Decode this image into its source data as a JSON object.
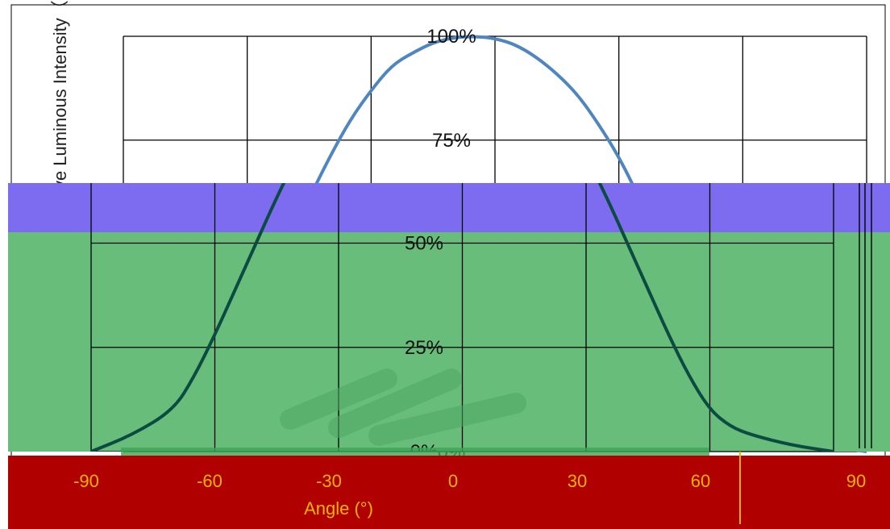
{
  "chart_data": {
    "type": "line",
    "title": "",
    "xlabel": "Angle (°)",
    "ylabel": "Relative Luminous Intensity（%）",
    "x_ticks": [
      -90,
      -60,
      -30,
      0,
      30,
      60,
      90
    ],
    "x_tick_labels": [
      "-90",
      "-60",
      "-30",
      "0",
      "30",
      "60",
      "90"
    ],
    "y_ticks": [
      0,
      25,
      50,
      75,
      100
    ],
    "y_tick_labels": [
      "0%",
      "25%",
      "50%",
      "75%",
      "100%"
    ],
    "xlim": [
      -90,
      90
    ],
    "ylim": [
      0,
      100
    ],
    "grid": true,
    "series": [
      {
        "x": [
          -90,
          -80,
          -70,
          -65,
          -60,
          -55,
          -50,
          -45,
          -40,
          -35,
          -30,
          -25,
          -20,
          -15,
          -10,
          -5,
          0,
          5,
          10,
          15,
          20,
          25,
          30,
          35,
          40,
          45,
          50,
          55,
          60,
          65,
          70,
          80,
          90
        ],
        "y": [
          0,
          4,
          10,
          18,
          28,
          39,
          50,
          61,
          71,
          80,
          87,
          93,
          96,
          98.5,
          99.7,
          100,
          99.5,
          98,
          95,
          91,
          86,
          79,
          71,
          61,
          50,
          39,
          28,
          18,
          10,
          6,
          4,
          1.5,
          0
        ]
      }
    ]
  },
  "colors": {
    "line": "#4f86bf",
    "grid": "#000000",
    "band_purple": "#7e6cf0",
    "band_green": "#69bd7b",
    "band_red": "#b00000"
  },
  "overlay": {
    "bottom_right_tick": "-4"
  }
}
